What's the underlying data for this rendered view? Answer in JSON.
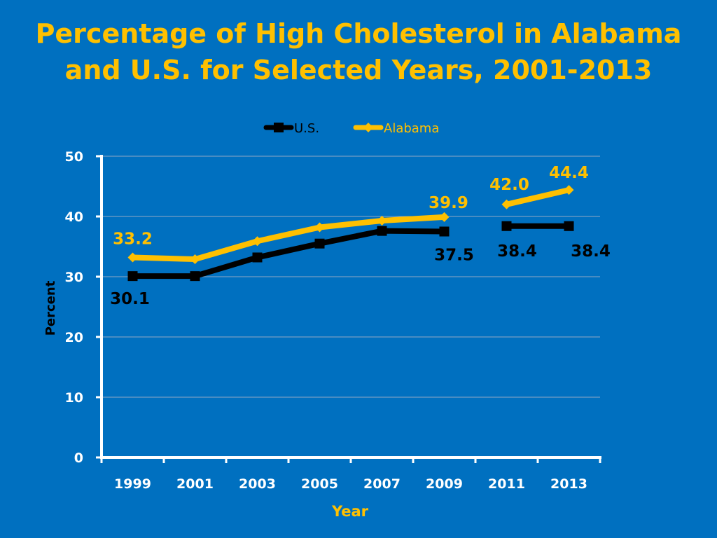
{
  "slide": {
    "title_line1": "Percentage of High Cholesterol in Alabama",
    "title_line2": "and U.S. for Selected Years, 2001-2013"
  },
  "colors": {
    "background": "#0070c0",
    "title": "#ffc000",
    "us_series": "#000000",
    "alabama_series": "#ffc000",
    "axis": "#ffffff",
    "gridline": "#8fa9c4"
  },
  "chart_data": {
    "type": "line",
    "title": "Percentage of High Cholesterol in Alabama and U.S. for Selected Years, 2001-2013",
    "xlabel": "Year",
    "ylabel": "Percent",
    "categories": [
      "1999",
      "2001",
      "2003",
      "2005",
      "2007",
      "2009",
      "2011",
      "2013"
    ],
    "ylim": [
      0,
      50
    ],
    "yticks": [
      0,
      10,
      20,
      30,
      40,
      50
    ],
    "grid": true,
    "legend_position": "top-center",
    "series": [
      {
        "name": "U.S.",
        "values": [
          30.1,
          30.1,
          33.2,
          35.5,
          37.6,
          37.5,
          38.4,
          38.4
        ],
        "labels": [
          "30.1",
          null,
          null,
          null,
          null,
          "37.5",
          "38.4",
          "38.4"
        ]
      },
      {
        "name": "Alabama",
        "values": [
          33.2,
          32.9,
          35.9,
          38.2,
          39.3,
          39.9,
          42.0,
          44.4
        ],
        "labels": [
          "33.2",
          null,
          null,
          null,
          null,
          "39.9",
          "42.0",
          "44.4"
        ]
      }
    ],
    "line_breaks": [
      "2009-2011"
    ]
  }
}
